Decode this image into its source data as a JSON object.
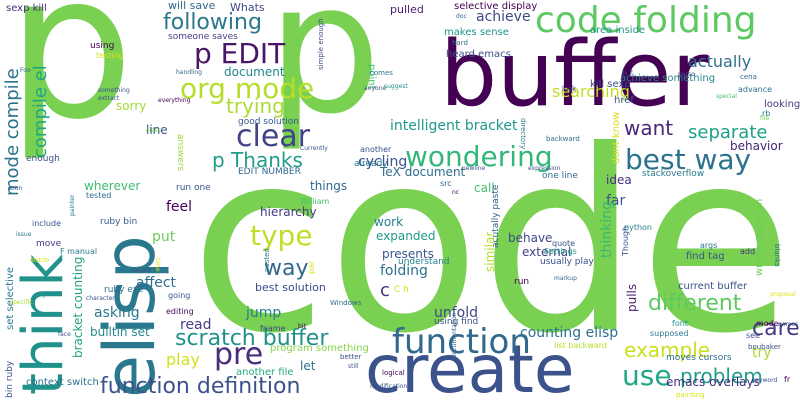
{
  "words": [
    {
      "text": "p",
      "color": "#7ad151"
    },
    {
      "text": "p",
      "color": "#7ad151"
    },
    {
      "text": "buffer",
      "color": "#440154"
    },
    {
      "text": "code",
      "color": "#7ad151"
    },
    {
      "text": "elisp",
      "color": "#2a788e"
    },
    {
      "text": "think",
      "color": "#21918c"
    },
    {
      "text": "create",
      "color": "#3b528b"
    },
    {
      "text": "code folding",
      "color": "#5ec962"
    },
    {
      "text": "function",
      "color": "#31688e"
    },
    {
      "text": "org mode",
      "color": "#b5de2b"
    },
    {
      "text": "p EDIT",
      "color": "#481567"
    },
    {
      "text": "best way",
      "color": "#2c728e"
    },
    {
      "text": "wondering",
      "color": "#35b779"
    },
    {
      "text": "clear",
      "color": "#414487"
    },
    {
      "text": "type",
      "color": "#bddf26"
    },
    {
      "text": "pre",
      "color": "#472d7b"
    },
    {
      "text": "function definition",
      "color": "#3b528b"
    },
    {
      "text": "scratch buffer",
      "color": "#21918c"
    },
    {
      "text": "following",
      "color": "#2a788e"
    },
    {
      "text": "compile el",
      "color": "#21a585"
    },
    {
      "text": "mode compile",
      "color": "#2c728e"
    },
    {
      "text": "trying",
      "color": "#addc30"
    },
    {
      "text": "p Thanks",
      "color": "#1f9e89"
    },
    {
      "text": "way",
      "color": "#31688e"
    },
    {
      "text": "use",
      "color": "#22a884"
    },
    {
      "text": "problem",
      "color": "#1f9e89"
    },
    {
      "text": "example",
      "color": "#c8e020"
    },
    {
      "text": "different",
      "color": "#5ec962"
    },
    {
      "text": "caret",
      "color": "#443983"
    },
    {
      "text": "want",
      "color": "#482878"
    },
    {
      "text": "separate",
      "color": "#1fa187"
    },
    {
      "text": "searching",
      "color": "#c2df23"
    },
    {
      "text": "actually",
      "color": "#2d708e"
    },
    {
      "text": "achieve",
      "color": "#3e4989"
    },
    {
      "text": "c",
      "color": "#46337e"
    },
    {
      "text": "folding",
      "color": "#2c728e"
    },
    {
      "text": "play",
      "color": "#d0e11c"
    },
    {
      "text": "read",
      "color": "#433e85"
    },
    {
      "text": "jump",
      "color": "#277f8e"
    },
    {
      "text": "asking",
      "color": "#2a788e"
    },
    {
      "text": "affect",
      "color": "#2e6e8e"
    },
    {
      "text": "put",
      "color": "#6ccd5a"
    },
    {
      "text": "feel",
      "color": "#440154"
    },
    {
      "text": "cycling",
      "color": "#3b528b"
    },
    {
      "text": "intelligent bracket",
      "color": "#1f988b"
    },
    {
      "text": "line",
      "color": "#38598c"
    },
    {
      "text": "sorry",
      "color": "#a0da39"
    },
    {
      "text": "document",
      "color": "#25858e"
    },
    {
      "text": "TeX document",
      "color": "#2e6e8e"
    },
    {
      "text": "things",
      "color": "#31688e"
    },
    {
      "text": "hierarchy",
      "color": "#443a83"
    },
    {
      "text": "work",
      "color": "#277f8e"
    },
    {
      "text": "expanded",
      "color": "#1f9a8a"
    },
    {
      "text": "presents",
      "color": "#39558c"
    },
    {
      "text": "best solution",
      "color": "#3e4a89"
    },
    {
      "text": "behave",
      "color": "#3f4788"
    },
    {
      "text": "external",
      "color": "#424086"
    },
    {
      "text": "call",
      "color": "#48c16e"
    },
    {
      "text": "idea",
      "color": "#472f7d"
    },
    {
      "text": "far",
      "color": "#3b528b"
    },
    {
      "text": "thinking",
      "color": "#38b977"
    },
    {
      "text": "pulls",
      "color": "#481f70"
    },
    {
      "text": "unfold",
      "color": "#3f4788"
    },
    {
      "text": "counting elisp",
      "color": "#2c728e"
    },
    {
      "text": "emacs overlays",
      "color": "#46307e"
    },
    {
      "text": "try",
      "color": "#a8db34"
    },
    {
      "text": "behavior",
      "color": "#482475"
    },
    {
      "text": "builtin set",
      "color": "#23898e"
    },
    {
      "text": "bracket counting",
      "color": "#20a386"
    },
    {
      "text": "wherever",
      "color": "#3fbc73"
    },
    {
      "text": "Whats",
      "color": "#3e4989"
    },
    {
      "text": "pulled",
      "color": "#481a6c"
    },
    {
      "text": "will save",
      "color": "#31688e"
    },
    {
      "text": "selective display",
      "color": "#440154"
    },
    {
      "text": "sexp kill",
      "color": "#472c7a"
    },
    {
      "text": "heard emacs",
      "color": "#3b528b"
    },
    {
      "text": "makes sense",
      "color": "#21918c"
    },
    {
      "text": "area inside",
      "color": "#1f958b"
    },
    {
      "text": "achieve something",
      "color": "#24868e"
    },
    {
      "text": "kill sexp",
      "color": "#3c4f8a"
    },
    {
      "text": "looking",
      "color": "#433d84"
    },
    {
      "text": "current buffer",
      "color": "#3b528b"
    },
    {
      "text": "find tag",
      "color": "#39568c"
    },
    {
      "text": "wrong question",
      "color": "#6ccd5a"
    },
    {
      "text": "stackoverflow",
      "color": "#29798e"
    },
    {
      "text": "moves cursors",
      "color": "#2e6e8e"
    },
    {
      "text": "program something",
      "color": "#86d549"
    },
    {
      "text": "another file",
      "color": "#25ab82"
    },
    {
      "text": "let",
      "color": "#2d718e"
    },
    {
      "text": "context switch",
      "color": "#2c738e"
    },
    {
      "text": "run one",
      "color": "#3a538b"
    },
    {
      "text": "good solution",
      "color": "#38588c"
    },
    {
      "text": "EDIT NUMBER",
      "color": "#31688e"
    },
    {
      "text": "answers",
      "color": "#98d83e"
    },
    {
      "text": "using find",
      "color": "#3b528b"
    },
    {
      "text": "ruby exe",
      "color": "#2d708e"
    },
    {
      "text": "ruby bin",
      "color": "#365c8d"
    },
    {
      "text": "set selective",
      "color": "#2a788e"
    },
    {
      "text": "bin ruby",
      "color": "#3b528b"
    },
    {
      "text": "acutally paste",
      "color": "#35608d"
    },
    {
      "text": "one line",
      "color": "#2d708e"
    },
    {
      "text": "similar",
      "color": "#b5de2b"
    },
    {
      "text": "understand",
      "color": "#25848e"
    },
    {
      "text": "usually play",
      "color": "#3c4f8a"
    },
    {
      "text": "href",
      "color": "#38588c"
    },
    {
      "text": "dont know",
      "color": "#d8e219"
    },
    {
      "text": "point",
      "color": "#48c16e"
    },
    {
      "text": "simple enough",
      "color": "#3d4e8a"
    },
    {
      "text": "someone saves",
      "color": "#433e85"
    },
    {
      "text": "using",
      "color": "#440154"
    },
    {
      "text": "testing",
      "color": "#d8e219"
    },
    {
      "text": "enough",
      "color": "#3b528b"
    },
    {
      "text": "move",
      "color": "#443983"
    },
    {
      "text": "include",
      "color": "#3b528b"
    },
    {
      "text": "F manual",
      "color": "#2a788e"
    },
    {
      "text": "tested",
      "color": "#2e6e8e"
    },
    {
      "text": "William",
      "color": "#48c16e"
    },
    {
      "text": "fname",
      "color": "#424086"
    },
    {
      "text": "going",
      "color": "#39568c"
    },
    {
      "text": "editing",
      "color": "#46075a"
    },
    {
      "text": "run",
      "color": "#440154"
    },
    {
      "text": "src",
      "color": "#31688e"
    },
    {
      "text": "already",
      "color": "#2a788e"
    },
    {
      "text": "another",
      "color": "#3b528b"
    },
    {
      "text": "advance",
      "color": "#2c728e"
    },
    {
      "text": "args",
      "color": "#2a788e"
    },
    {
      "text": "add",
      "color": "#46307e"
    },
    {
      "text": "mode",
      "color": "#440154"
    },
    {
      "text": "see",
      "color": "#3b528b"
    },
    {
      "text": "font",
      "color": "#21918c"
    },
    {
      "text": "Though",
      "color": "#3b528b"
    },
    {
      "text": "python",
      "color": "#26828e"
    },
    {
      "text": "quote",
      "color": "#3b528b"
    },
    {
      "text": "Settings",
      "color": "#1f9a8a"
    },
    {
      "text": "supposed",
      "color": "#2a788e"
    },
    {
      "text": "list backward",
      "color": "#b5de2b"
    },
    {
      "text": "logical",
      "color": "#440154"
    },
    {
      "text": "better",
      "color": "#3b528b"
    },
    {
      "text": "Windows",
      "color": "#31688e"
    },
    {
      "text": "C h",
      "color": "#d8e219"
    },
    {
      "text": "par",
      "color": "#d8e219"
    },
    {
      "text": "pasted",
      "color": "#2a788e"
    },
    {
      "text": "lock",
      "color": "#443983"
    },
    {
      "text": "backward",
      "color": "#2e6e8e"
    },
    {
      "text": "h f",
      "color": "#3b528b"
    },
    {
      "text": "rb",
      "color": "#2a788e"
    },
    {
      "text": "cena",
      "color": "#31688e"
    },
    {
      "text": "special",
      "color": "#48c16e"
    },
    {
      "text": "file",
      "color": "#7ad151"
    },
    {
      "text": "boubaker",
      "color": "#3b528b"
    },
    {
      "text": "blanks",
      "color": "#2c728e"
    },
    {
      "text": "painting",
      "color": "#d8e219"
    },
    {
      "text": "keyword",
      "color": "#3b528b"
    },
    {
      "text": "fr",
      "color": "#440154"
    },
    {
      "text": "names",
      "color": "#3b528b"
    },
    {
      "text": "doc",
      "color": "#31688e"
    },
    {
      "text": "hard",
      "color": "#2e6e8e"
    },
    {
      "text": "Foo",
      "color": "#31688e"
    },
    {
      "text": "soon",
      "color": "#3b528b"
    },
    {
      "text": "issue",
      "color": "#2a788e"
    },
    {
      "text": "distrib",
      "color": "#d8e219"
    },
    {
      "text": "specific",
      "color": "#b5de2b"
    },
    {
      "text": "face",
      "color": "#3b528b"
    },
    {
      "text": "regular",
      "color": "#21918c"
    },
    {
      "text": "character",
      "color": "#3b528b"
    },
    {
      "text": "painter",
      "color": "#2a788e"
    },
    {
      "text": "correct",
      "color": "#3b528b"
    },
    {
      "text": "time",
      "color": "#d8e219"
    },
    {
      "text": "extract",
      "color": "#3b528b"
    },
    {
      "text": "everything",
      "color": "#440154"
    },
    {
      "text": "something",
      "color": "#3b528b"
    },
    {
      "text": "handling",
      "color": "#31688e"
    },
    {
      "text": "class",
      "color": "#7ad151"
    },
    {
      "text": "Currently",
      "color": "#3b528b"
    },
    {
      "text": "comes",
      "color": "#2a788e"
    },
    {
      "text": "anyone",
      "color": "#3b528b"
    },
    {
      "text": "suggest",
      "color": "#21918c"
    },
    {
      "text": "directory",
      "color": "#2a788e"
    },
    {
      "text": "perso",
      "color": "#3b528b"
    },
    {
      "text": "newline",
      "color": "#3b528b"
    },
    {
      "text": "nc",
      "color": "#440154"
    },
    {
      "text": "expression",
      "color": "#3b528b"
    },
    {
      "text": "markup",
      "color": "#31688e"
    },
    {
      "text": "modification",
      "color": "#3b528b"
    },
    {
      "text": "documentation",
      "color": "#31688e"
    },
    {
      "text": "still",
      "color": "#3b528b"
    },
    {
      "text": "bit",
      "color": "#440154"
    },
    {
      "text": "proposal",
      "color": "#d8e219"
    }
  ]
}
